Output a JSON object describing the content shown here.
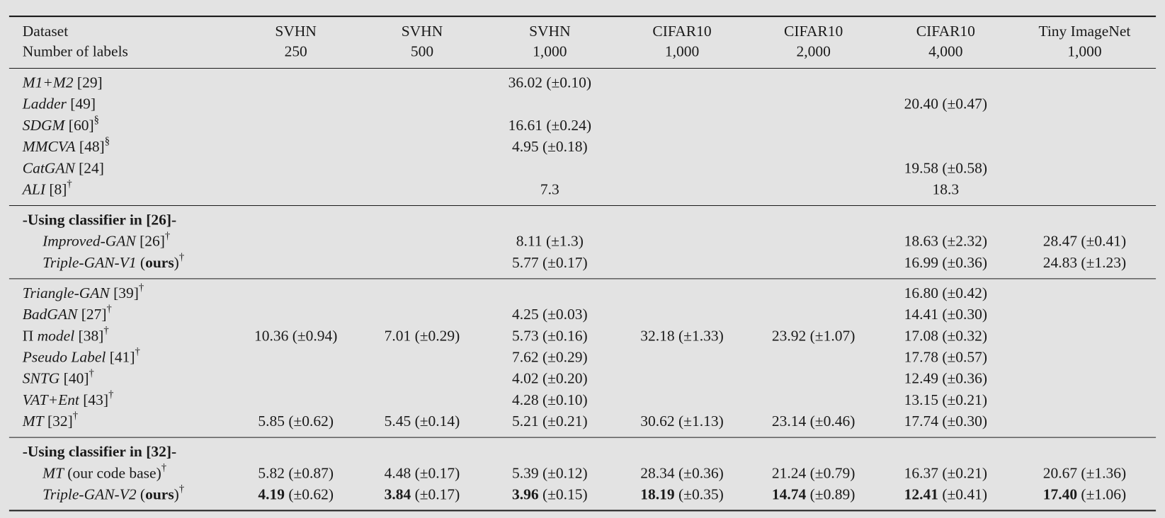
{
  "table": {
    "header": [
      [
        "Dataset",
        "SVHN",
        "SVHN",
        "SVHN",
        "CIFAR10",
        "CIFAR10",
        "CIFAR10",
        "Tiny ImageNet"
      ],
      [
        "Number of labels",
        "250",
        "500",
        "1,000",
        "1,000",
        "2,000",
        "4,000",
        "1,000"
      ]
    ],
    "groups": [
      {
        "rows": [
          {
            "method": [
              {
                "t": "M1+M2",
                "i": true
              },
              {
                "t": " [29]"
              }
            ],
            "cells": {
              "2": {
                "v": "36.02",
                "e": " (±0.10)"
              }
            }
          },
          {
            "method": [
              {
                "t": "Ladder",
                "i": true
              },
              {
                "t": " [49]"
              }
            ],
            "cells": {
              "5": {
                "v": "20.40",
                "e": " (±0.47)"
              }
            }
          },
          {
            "method": [
              {
                "t": "SDGM",
                "i": true
              },
              {
                "t": " [60]"
              },
              {
                "t": "§",
                "sup": true
              }
            ],
            "cells": {
              "2": {
                "v": "16.61",
                "e": " (±0.24)"
              }
            }
          },
          {
            "method": [
              {
                "t": "MMCVA",
                "i": true
              },
              {
                "t": " [48]"
              },
              {
                "t": "§",
                "sup": true
              }
            ],
            "cells": {
              "2": {
                "v": "4.95",
                "e": " (±0.18)"
              }
            }
          },
          {
            "method": [
              {
                "t": "CatGAN",
                "i": true
              },
              {
                "t": " [24]"
              }
            ],
            "cells": {
              "5": {
                "v": "19.58",
                "e": " (±0.58)"
              }
            }
          },
          {
            "method": [
              {
                "t": "ALI",
                "i": true
              },
              {
                "t": " [8]"
              },
              {
                "t": "†",
                "sup": true
              }
            ],
            "cells": {
              "2": {
                "v": "7.3"
              },
              "5": {
                "v": "18.3"
              }
            }
          }
        ]
      },
      {
        "title": "-Using classifier in [26]-",
        "rows": [
          {
            "method": [
              {
                "t": "Improved-GAN",
                "i": true
              },
              {
                "t": " [26]"
              },
              {
                "t": "†",
                "sup": true
              }
            ],
            "cells": {
              "2": {
                "v": "8.11",
                "e": " (±1.3)"
              },
              "5": {
                "v": "18.63",
                "e": " (±2.32)"
              },
              "6": {
                "v": "28.47",
                "e": " (±0.41)"
              }
            }
          },
          {
            "method": [
              {
                "t": "Triple-GAN-V1",
                "i": true
              },
              {
                "t": " ("
              },
              {
                "t": "ours",
                "b": true
              },
              {
                "t": ")"
              },
              {
                "t": "†",
                "sup": true
              }
            ],
            "cells": {
              "2": {
                "v": "5.77",
                "e": " (±0.17)"
              },
              "5": {
                "v": "16.99",
                "e": " (±0.36)"
              },
              "6": {
                "v": "24.83",
                "e": " (±1.23)"
              }
            }
          }
        ]
      },
      {
        "rows": [
          {
            "method": [
              {
                "t": "Triangle-GAN",
                "i": true
              },
              {
                "t": " [39]"
              },
              {
                "t": "†",
                "sup": true
              }
            ],
            "cells": {
              "5": {
                "v": "16.80",
                "e": " (±0.42)"
              }
            }
          },
          {
            "method": [
              {
                "t": "BadGAN",
                "i": true
              },
              {
                "t": " [27]"
              },
              {
                "t": "†",
                "sup": true
              }
            ],
            "cells": {
              "2": {
                "v": "4.25",
                "e": " (±0.03)"
              },
              "5": {
                "v": "14.41",
                "e": " (±0.30)"
              }
            }
          },
          {
            "method": [
              {
                "t": "Π "
              },
              {
                "t": "model",
                "i": true
              },
              {
                "t": " [38]"
              },
              {
                "t": "†",
                "sup": true
              }
            ],
            "cells": {
              "0": {
                "v": "10.36",
                "e": " (±0.94)"
              },
              "1": {
                "v": "7.01",
                "e": " (±0.29)"
              },
              "2": {
                "v": "5.73",
                "e": " (±0.16)"
              },
              "3": {
                "v": "32.18",
                "e": " (±1.33)"
              },
              "4": {
                "v": "23.92",
                "e": " (±1.07)"
              },
              "5": {
                "v": "17.08",
                "e": " (±0.32)"
              }
            }
          },
          {
            "method": [
              {
                "t": "Pseudo Label",
                "i": true
              },
              {
                "t": " [41]"
              },
              {
                "t": "†",
                "sup": true
              }
            ],
            "cells": {
              "2": {
                "v": "7.62",
                "e": " (±0.29)"
              },
              "5": {
                "v": "17.78",
                "e": " (±0.57)"
              }
            }
          },
          {
            "method": [
              {
                "t": "SNTG",
                "i": true
              },
              {
                "t": " [40]"
              },
              {
                "t": "†",
                "sup": true
              }
            ],
            "cells": {
              "2": {
                "v": "4.02",
                "e": " (±0.20)"
              },
              "5": {
                "v": "12.49",
                "e": " (±0.36)"
              }
            }
          },
          {
            "method": [
              {
                "t": "VAT+Ent",
                "i": true
              },
              {
                "t": " [43]"
              },
              {
                "t": "†",
                "sup": true
              }
            ],
            "cells": {
              "2": {
                "v": "4.28",
                "e": " (±0.10)"
              },
              "5": {
                "v": "13.15",
                "e": " (±0.21)"
              }
            }
          },
          {
            "method": [
              {
                "t": "MT",
                "i": true
              },
              {
                "t": " [32]"
              },
              {
                "t": "†",
                "sup": true
              }
            ],
            "cells": {
              "0": {
                "v": "5.85",
                "e": " (±0.62)"
              },
              "1": {
                "v": "5.45",
                "e": " (±0.14)"
              },
              "2": {
                "v": "5.21",
                "e": " (±0.21)"
              },
              "3": {
                "v": "30.62",
                "e": " (±1.13)"
              },
              "4": {
                "v": "23.14",
                "e": " (±0.46)"
              },
              "5": {
                "v": "17.74",
                "e": " (±0.30)"
              }
            }
          }
        ]
      },
      {
        "title": "-Using classifier in [32]-",
        "rows": [
          {
            "method": [
              {
                "t": "MT",
                "i": true
              },
              {
                "t": " (our code base)"
              },
              {
                "t": "†",
                "sup": true
              }
            ],
            "cells": {
              "0": {
                "v": "5.82",
                "e": " (±0.87)"
              },
              "1": {
                "v": "4.48",
                "e": " (±0.17)"
              },
              "2": {
                "v": "5.39",
                "e": " (±0.12)"
              },
              "3": {
                "v": "28.34",
                "e": " (±0.36)"
              },
              "4": {
                "v": "21.24",
                "e": " (±0.79)"
              },
              "5": {
                "v": "16.37",
                "e": " (±0.21)"
              },
              "6": {
                "v": "20.67",
                "e": " (±1.36)"
              }
            }
          },
          {
            "method": [
              {
                "t": "Triple-GAN-V2",
                "i": true
              },
              {
                "t": " ("
              },
              {
                "t": "ours",
                "b": true
              },
              {
                "t": ")"
              },
              {
                "t": "†",
                "sup": true
              }
            ],
            "cells": {
              "0": {
                "v": "4.19",
                "e": " (±0.62)",
                "bold": true
              },
              "1": {
                "v": "3.84",
                "e": " (±0.17)",
                "bold": true
              },
              "2": {
                "v": "3.96",
                "e": " (±0.15)",
                "bold": true
              },
              "3": {
                "v": "18.19",
                "e": " (±0.35)",
                "bold": true
              },
              "4": {
                "v": "14.74",
                "e": " (±0.89)",
                "bold": true
              },
              "5": {
                "v": "12.41",
                "e": " (±0.41)",
                "bold": true
              },
              "6": {
                "v": "17.40",
                "e": " (±1.06)",
                "bold": true
              }
            }
          }
        ]
      }
    ]
  }
}
